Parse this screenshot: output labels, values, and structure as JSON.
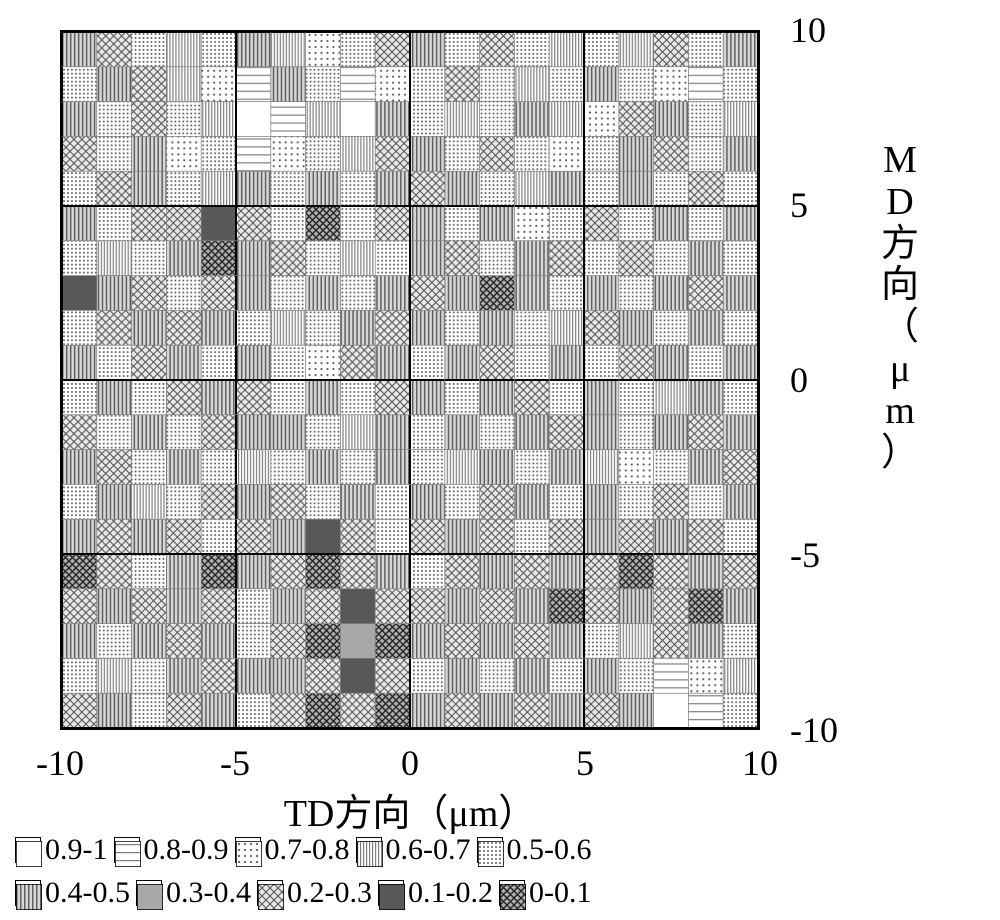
{
  "chart": {
    "type": "heatmap-contour",
    "xlabel": "TD方向（μm）",
    "ylabel_chars": [
      "M",
      "D",
      "方",
      "向",
      "（",
      "μ",
      "m",
      "）"
    ],
    "xlim": [
      -10,
      10
    ],
    "ylim": [
      -10,
      10
    ],
    "xtick_values": [
      -10,
      -5,
      0,
      5,
      10
    ],
    "ytick_values": [
      -10,
      -5,
      0,
      5,
      10
    ],
    "xtick_labels": [
      "-10",
      "-5",
      "0",
      "5",
      "10"
    ],
    "ytick_labels": [
      "-10",
      "-5",
      "0",
      "5",
      "10"
    ],
    "grid_major_step": 5,
    "grid_minor_step": 1,
    "grid_major_color": "#000000",
    "grid_minor_color": "#808080",
    "grid_major_width": 2,
    "grid_minor_width": 0.75,
    "plot_border_width": 2,
    "background_color": "#ffffff",
    "tick_fontsize_pt": 27,
    "axis_label_fontsize_pt": 28,
    "legend_fontsize_pt": 22,
    "bins": [
      {
        "label": "0.9-1",
        "range": [
          0.9,
          1.0
        ],
        "pattern": "blank",
        "fill": "#ffffff",
        "pattern_color": "#000000"
      },
      {
        "label": "0.8-0.9",
        "range": [
          0.8,
          0.9
        ],
        "pattern": "hstripe-sparse",
        "fill": "#ffffff",
        "pattern_color": "#808080"
      },
      {
        "label": "0.7-0.8",
        "range": [
          0.7,
          0.8
        ],
        "pattern": "dots-medium",
        "fill": "#ffffff",
        "pattern_color": "#606060"
      },
      {
        "label": "0.6-0.7",
        "range": [
          0.6,
          0.7
        ],
        "pattern": "vstripe-dense",
        "fill": "#ffffff",
        "pattern_color": "#808080"
      },
      {
        "label": "0.5-0.6",
        "range": [
          0.5,
          0.6
        ],
        "pattern": "dots-dense",
        "fill": "#ffffff",
        "pattern_color": "#606060"
      },
      {
        "label": "0.4-0.5",
        "range": [
          0.4,
          0.5
        ],
        "pattern": "vstripe-medium",
        "fill": "#d8d8d8",
        "pattern_color": "#606060"
      },
      {
        "label": "0.3-0.4",
        "range": [
          0.3,
          0.4
        ],
        "pattern": "solid-grey",
        "fill": "#a8a8a8",
        "pattern_color": "#a8a8a8"
      },
      {
        "label": "0.2-0.3",
        "range": [
          0.2,
          0.3
        ],
        "pattern": "crosshatch-light",
        "fill": "#e8e8e8",
        "pattern_color": "#505050"
      },
      {
        "label": "0.1-0.2",
        "range": [
          0.1,
          0.2
        ],
        "pattern": "solid-dark",
        "fill": "#585858",
        "pattern_color": "#585858"
      },
      {
        "label": "0-0.1",
        "range": [
          0.0,
          0.1
        ],
        "pattern": "crosshatch-dark",
        "fill": "#b0b0b0",
        "pattern_color": "#202020"
      }
    ],
    "cell_values": [
      [
        0.45,
        0.25,
        0.55,
        0.65,
        0.55,
        0.45,
        0.65,
        0.75,
        0.55,
        0.25,
        0.45,
        0.55,
        0.25,
        0.55,
        0.65,
        0.55,
        0.65,
        0.25,
        0.55,
        0.45
      ],
      [
        0.55,
        0.45,
        0.25,
        0.65,
        0.75,
        0.85,
        0.45,
        0.55,
        0.85,
        0.75,
        0.55,
        0.25,
        0.55,
        0.65,
        0.55,
        0.45,
        0.55,
        0.75,
        0.85,
        0.55
      ],
      [
        0.45,
        0.55,
        0.25,
        0.55,
        0.65,
        0.95,
        0.85,
        0.65,
        0.95,
        0.45,
        0.55,
        0.65,
        0.55,
        0.45,
        0.65,
        0.75,
        0.25,
        0.45,
        0.55,
        0.65
      ],
      [
        0.25,
        0.55,
        0.45,
        0.75,
        0.55,
        0.85,
        0.75,
        0.55,
        0.65,
        0.25,
        0.45,
        0.55,
        0.25,
        0.55,
        0.75,
        0.55,
        0.45,
        0.25,
        0.55,
        0.45
      ],
      [
        0.55,
        0.25,
        0.45,
        0.55,
        0.65,
        0.45,
        0.55,
        0.45,
        0.55,
        0.45,
        0.25,
        0.45,
        0.55,
        0.65,
        0.45,
        0.55,
        0.45,
        0.55,
        0.25,
        0.55
      ],
      [
        0.45,
        0.55,
        0.25,
        0.25,
        0.15,
        0.25,
        0.55,
        0.05,
        0.55,
        0.25,
        0.45,
        0.55,
        0.45,
        0.75,
        0.55,
        0.25,
        0.55,
        0.45,
        0.55,
        0.45
      ],
      [
        0.55,
        0.65,
        0.55,
        0.45,
        0.05,
        0.45,
        0.25,
        0.55,
        0.65,
        0.55,
        0.45,
        0.25,
        0.55,
        0.45,
        0.25,
        0.55,
        0.25,
        0.55,
        0.45,
        0.55
      ],
      [
        0.15,
        0.45,
        0.25,
        0.55,
        0.25,
        0.45,
        0.55,
        0.45,
        0.55,
        0.45,
        0.25,
        0.45,
        0.05,
        0.45,
        0.55,
        0.45,
        0.55,
        0.45,
        0.25,
        0.45
      ],
      [
        0.55,
        0.25,
        0.45,
        0.25,
        0.45,
        0.55,
        0.65,
        0.55,
        0.45,
        0.25,
        0.45,
        0.55,
        0.45,
        0.55,
        0.65,
        0.25,
        0.45,
        0.55,
        0.45,
        0.55
      ],
      [
        0.45,
        0.55,
        0.25,
        0.45,
        0.55,
        0.45,
        0.55,
        0.75,
        0.25,
        0.45,
        0.55,
        0.45,
        0.25,
        0.55,
        0.45,
        0.55,
        0.25,
        0.45,
        0.55,
        0.45
      ],
      [
        0.55,
        0.45,
        0.55,
        0.25,
        0.45,
        0.25,
        0.55,
        0.45,
        0.55,
        0.25,
        0.45,
        0.55,
        0.45,
        0.25,
        0.55,
        0.45,
        0.55,
        0.65,
        0.45,
        0.55
      ],
      [
        0.25,
        0.55,
        0.45,
        0.55,
        0.25,
        0.45,
        0.45,
        0.55,
        0.65,
        0.45,
        0.55,
        0.45,
        0.55,
        0.45,
        0.25,
        0.45,
        0.55,
        0.45,
        0.25,
        0.45
      ],
      [
        0.45,
        0.25,
        0.55,
        0.45,
        0.55,
        0.65,
        0.55,
        0.45,
        0.55,
        0.45,
        0.55,
        0.65,
        0.45,
        0.55,
        0.45,
        0.65,
        0.75,
        0.55,
        0.45,
        0.25
      ],
      [
        0.55,
        0.45,
        0.65,
        0.55,
        0.25,
        0.45,
        0.25,
        0.55,
        0.45,
        0.55,
        0.45,
        0.55,
        0.25,
        0.45,
        0.55,
        0.45,
        0.55,
        0.25,
        0.55,
        0.45
      ],
      [
        0.45,
        0.25,
        0.45,
        0.25,
        0.55,
        0.25,
        0.45,
        0.15,
        0.25,
        0.55,
        0.25,
        0.45,
        0.25,
        0.55,
        0.25,
        0.45,
        0.25,
        0.45,
        0.25,
        0.55
      ],
      [
        0.05,
        0.25,
        0.55,
        0.45,
        0.05,
        0.45,
        0.25,
        0.05,
        0.25,
        0.45,
        0.55,
        0.25,
        0.45,
        0.25,
        0.45,
        0.25,
        0.05,
        0.25,
        0.45,
        0.25
      ],
      [
        0.25,
        0.45,
        0.25,
        0.45,
        0.25,
        0.55,
        0.45,
        0.25,
        0.15,
        0.25,
        0.25,
        0.45,
        0.25,
        0.45,
        0.05,
        0.25,
        0.45,
        0.25,
        0.05,
        0.45
      ],
      [
        0.45,
        0.55,
        0.45,
        0.25,
        0.45,
        0.55,
        0.25,
        0.05,
        0.35,
        0.05,
        0.45,
        0.25,
        0.45,
        0.25,
        0.45,
        0.55,
        0.65,
        0.25,
        0.45,
        0.55
      ],
      [
        0.55,
        0.65,
        0.55,
        0.45,
        0.25,
        0.45,
        0.45,
        0.25,
        0.15,
        0.25,
        0.55,
        0.45,
        0.55,
        0.45,
        0.55,
        0.45,
        0.55,
        0.85,
        0.75,
        0.65
      ],
      [
        0.25,
        0.45,
        0.55,
        0.25,
        0.45,
        0.55,
        0.25,
        0.05,
        0.25,
        0.05,
        0.45,
        0.25,
        0.45,
        0.25,
        0.45,
        0.25,
        0.45,
        0.95,
        0.85,
        0.55
      ]
    ]
  }
}
